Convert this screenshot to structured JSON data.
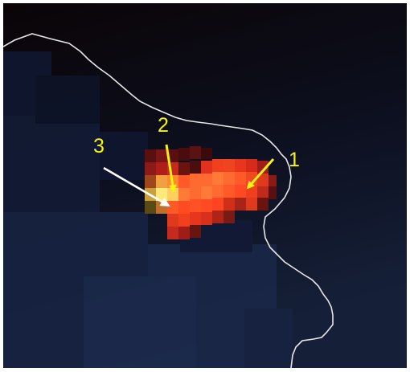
{
  "image": {
    "colors": {
      "background_top": "#0a0406",
      "background_bottom": "#15203a",
      "hot_core": "#ff5a2a",
      "hot_peak": "#ffe87a",
      "coastline": "#e6e6e6",
      "label": "#f7f210",
      "arrow_yellow": "#f7f210",
      "arrow_white": "#ffffff"
    }
  },
  "labels": [
    {
      "id": "1",
      "text": "1",
      "arrow_color": "yellow"
    },
    {
      "id": "2",
      "text": "2",
      "arrow_color": "yellow"
    },
    {
      "id": "3",
      "text": "3",
      "arrow_color": "white"
    }
  ]
}
